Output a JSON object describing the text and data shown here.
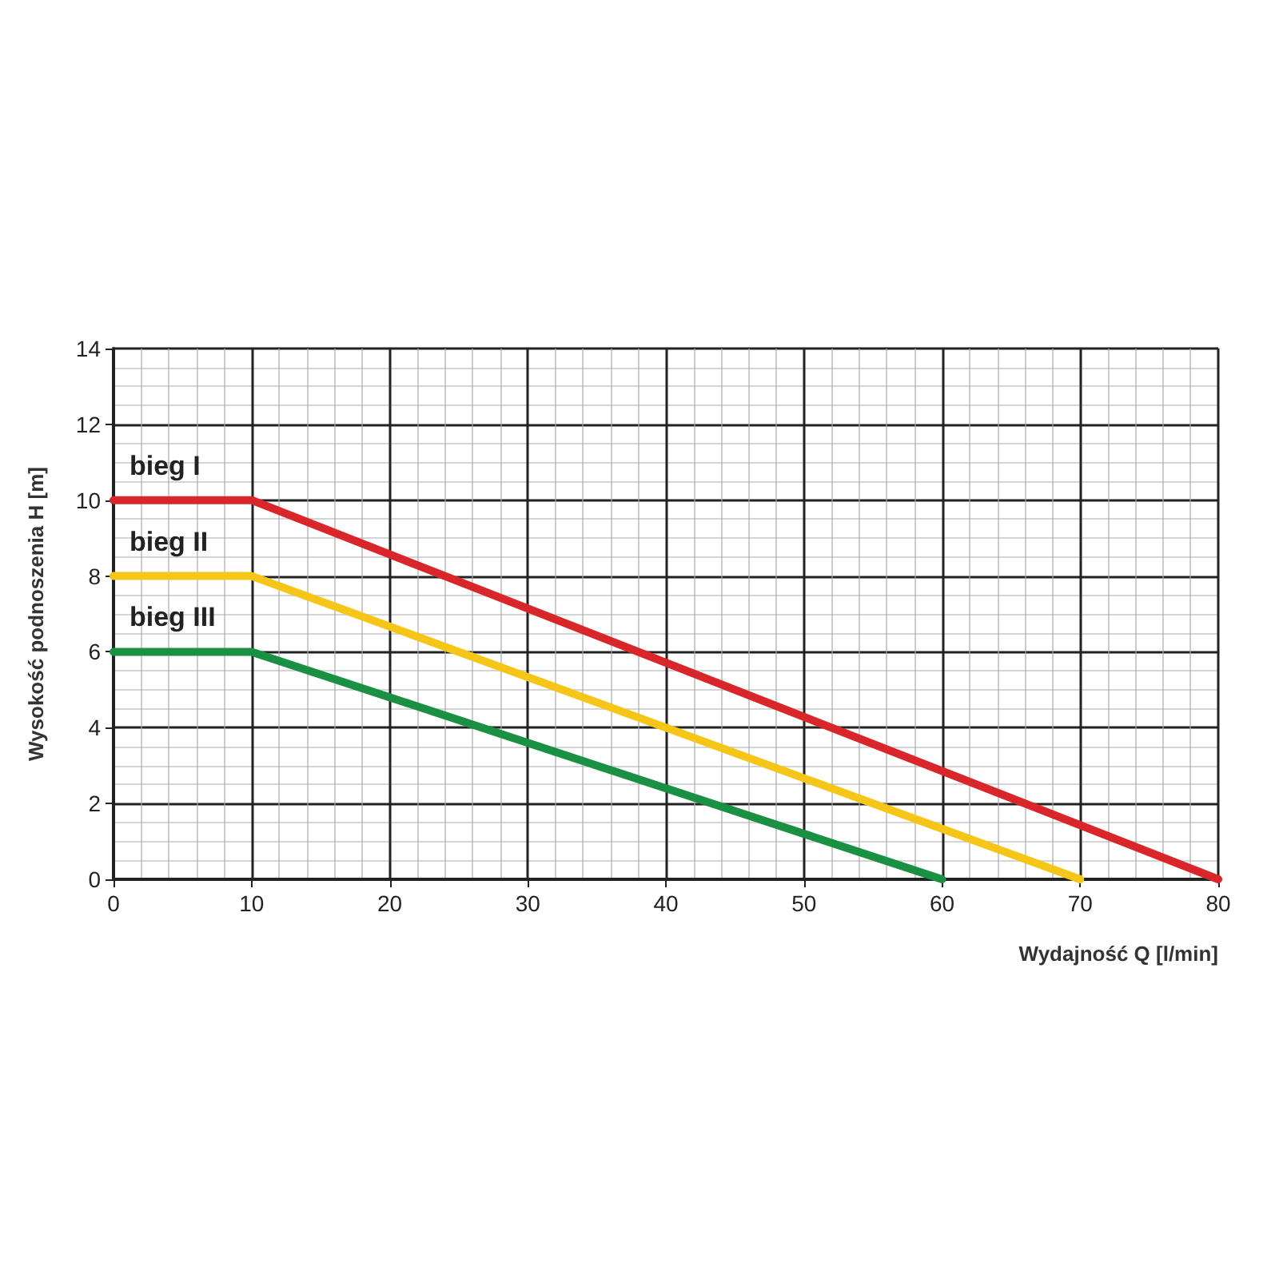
{
  "chart_data": {
    "type": "line",
    "xlabel": "Wydajność Q [l/min]",
    "ylabel": "Wysokość podnoszenia H [m]",
    "series": [
      {
        "name": "bieg I",
        "color": "#d9262b",
        "x": [
          0,
          10,
          80
        ],
        "values": [
          10,
          10,
          0
        ]
      },
      {
        "name": "bieg II",
        "color": "#f5c518",
        "x": [
          0,
          10,
          70
        ],
        "values": [
          8,
          8,
          0
        ]
      },
      {
        "name": "bieg III",
        "color": "#1a9142",
        "x": [
          0,
          10,
          60
        ],
        "values": [
          6,
          6,
          0
        ]
      }
    ],
    "xlim": [
      0,
      80
    ],
    "xticks": [
      0,
      10,
      20,
      30,
      40,
      50,
      60,
      70,
      80
    ],
    "ylim": [
      0,
      14
    ],
    "yticks": [
      0,
      2,
      4,
      6,
      8,
      10,
      12,
      14
    ],
    "grid": true,
    "legend": false,
    "marker": "none",
    "line_style": "solid"
  }
}
